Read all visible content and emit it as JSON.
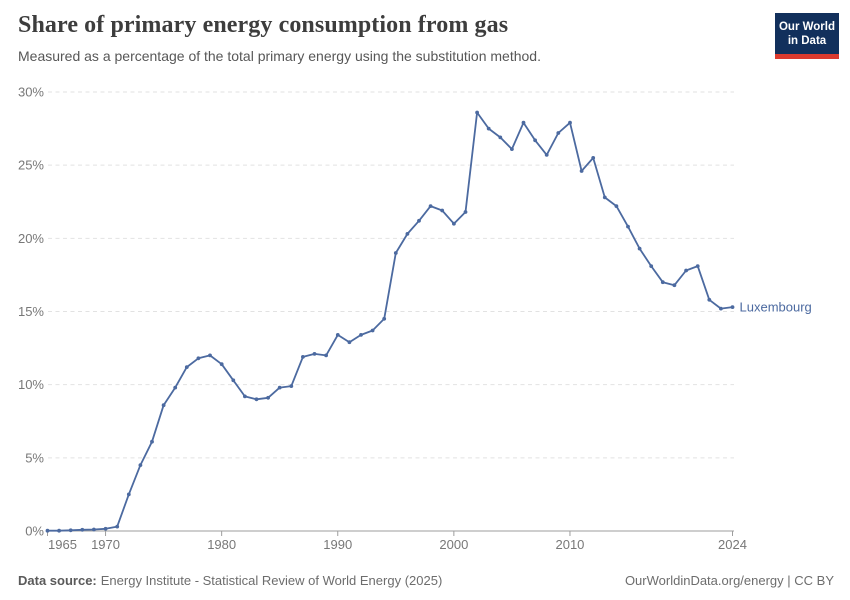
{
  "header": {
    "title": "Share of primary energy consumption from gas",
    "subtitle": "Measured as a percentage of the total primary energy using the substitution method.",
    "logo": {
      "line1": "Our World",
      "line2": "in Data",
      "bg_color": "#12305c",
      "accent_color": "#dc3a2e"
    }
  },
  "chart_data": {
    "type": "line",
    "title": "Share of primary energy consumption from gas",
    "xlabel": "",
    "ylabel": "",
    "ylim": [
      0,
      30
    ],
    "yticks": [
      0,
      5,
      10,
      15,
      20,
      25,
      30
    ],
    "ytick_suffix": "%",
    "xticks": [
      1965,
      1970,
      1980,
      1990,
      2000,
      2010,
      2024
    ],
    "x_range": [
      1965,
      2024
    ],
    "grid": "horizontal-dashed",
    "legend_position": "end-of-line-label",
    "colors": {
      "line": "#4c6aa0",
      "grid": "#e2e2e2",
      "axis": "#9e9e9e",
      "tick_text": "#787878"
    },
    "series": [
      {
        "name": "Luxembourg",
        "x": [
          1965,
          1966,
          1967,
          1968,
          1969,
          1970,
          1971,
          1972,
          1973,
          1974,
          1975,
          1976,
          1977,
          1978,
          1979,
          1980,
          1981,
          1982,
          1983,
          1984,
          1985,
          1986,
          1987,
          1988,
          1989,
          1990,
          1991,
          1992,
          1993,
          1994,
          1995,
          1996,
          1997,
          1998,
          1999,
          2000,
          2001,
          2002,
          2003,
          2004,
          2005,
          2006,
          2007,
          2008,
          2009,
          2010,
          2011,
          2012,
          2013,
          2014,
          2015,
          2016,
          2017,
          2018,
          2019,
          2020,
          2021,
          2022,
          2023,
          2024
        ],
        "values": [
          0.02,
          0.02,
          0.05,
          0.08,
          0.1,
          0.15,
          0.3,
          2.5,
          4.5,
          6.1,
          8.6,
          9.8,
          11.2,
          11.8,
          12.0,
          11.4,
          10.3,
          9.2,
          9.0,
          9.1,
          9.8,
          9.9,
          11.9,
          12.1,
          12.0,
          13.4,
          12.9,
          13.4,
          13.7,
          14.5,
          19.0,
          20.3,
          21.2,
          22.2,
          21.9,
          21.0,
          21.8,
          28.6,
          27.5,
          26.9,
          26.1,
          27.9,
          26.7,
          25.7,
          27.2,
          27.9,
          24.6,
          25.5,
          22.8,
          22.2,
          20.8,
          19.3,
          18.1,
          17.0,
          16.8,
          17.8,
          18.1,
          15.8,
          15.2,
          15.3
        ]
      }
    ]
  },
  "footer": {
    "source_label": "Data source:",
    "source_text": "Energy Institute - Statistical Review of World Energy (2025)",
    "attribution": "OurWorldinData.org/energy | CC BY"
  }
}
